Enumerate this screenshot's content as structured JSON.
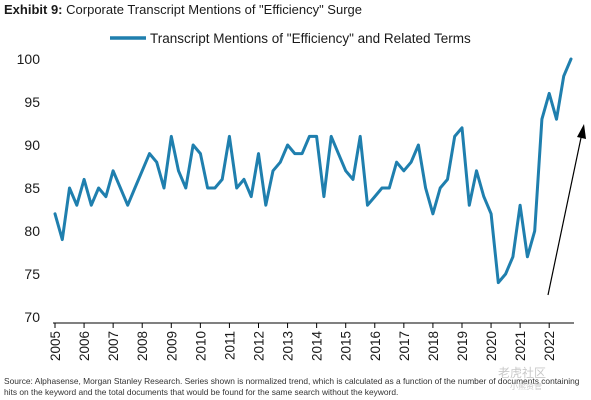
{
  "header": {
    "exhibit_label": "Exhibit 9:",
    "title": "Corporate Transcript Mentions of \"Efficiency\" Surge"
  },
  "chart_data": {
    "type": "line",
    "series": [
      {
        "name": "Transcript Mentions of \"Efficiency\" and Related Terms",
        "color": "#1f7fae",
        "values": [
          82,
          79,
          85,
          83,
          86,
          83,
          85,
          84,
          87,
          85,
          83,
          85,
          87,
          89,
          88,
          85,
          91,
          87,
          85,
          90,
          89,
          85,
          85,
          86,
          91,
          85,
          86,
          84,
          89,
          83,
          87,
          88,
          90,
          89,
          89,
          91,
          91,
          84,
          91,
          89,
          87,
          86,
          91,
          83,
          84,
          85,
          85,
          88,
          87,
          88,
          90,
          85,
          82,
          85,
          86,
          91,
          92,
          83,
          87,
          84,
          82,
          74,
          75,
          77,
          83,
          77,
          80,
          93,
          96,
          93,
          98,
          100
        ]
      }
    ],
    "x_start": "2005 Q1",
    "frequency": "quarterly",
    "x_tick_labels": [
      "2005",
      "2006",
      "2007",
      "2008",
      "2009",
      "2010",
      "2011",
      "2012",
      "2013",
      "2014",
      "2015",
      "2016",
      "2017",
      "2018",
      "2019",
      "2020",
      "2021",
      "2022"
    ],
    "y_ticks": [
      70,
      75,
      80,
      85,
      90,
      95,
      100
    ],
    "ylim": [
      70,
      100
    ],
    "grid": false,
    "legend_position": "top-center",
    "annotation": "upward-trend-arrow"
  },
  "footer": {
    "source": "Source: Alphasense, Morgan Stanley Research. Series shown is normalized trend, which is calculated as a function of the number of documents containing hits on the keyword and the total documents that would be found for the same search without the keyword."
  },
  "watermark": {
    "text": "老虎社区",
    "sub": "小熊资管"
  }
}
